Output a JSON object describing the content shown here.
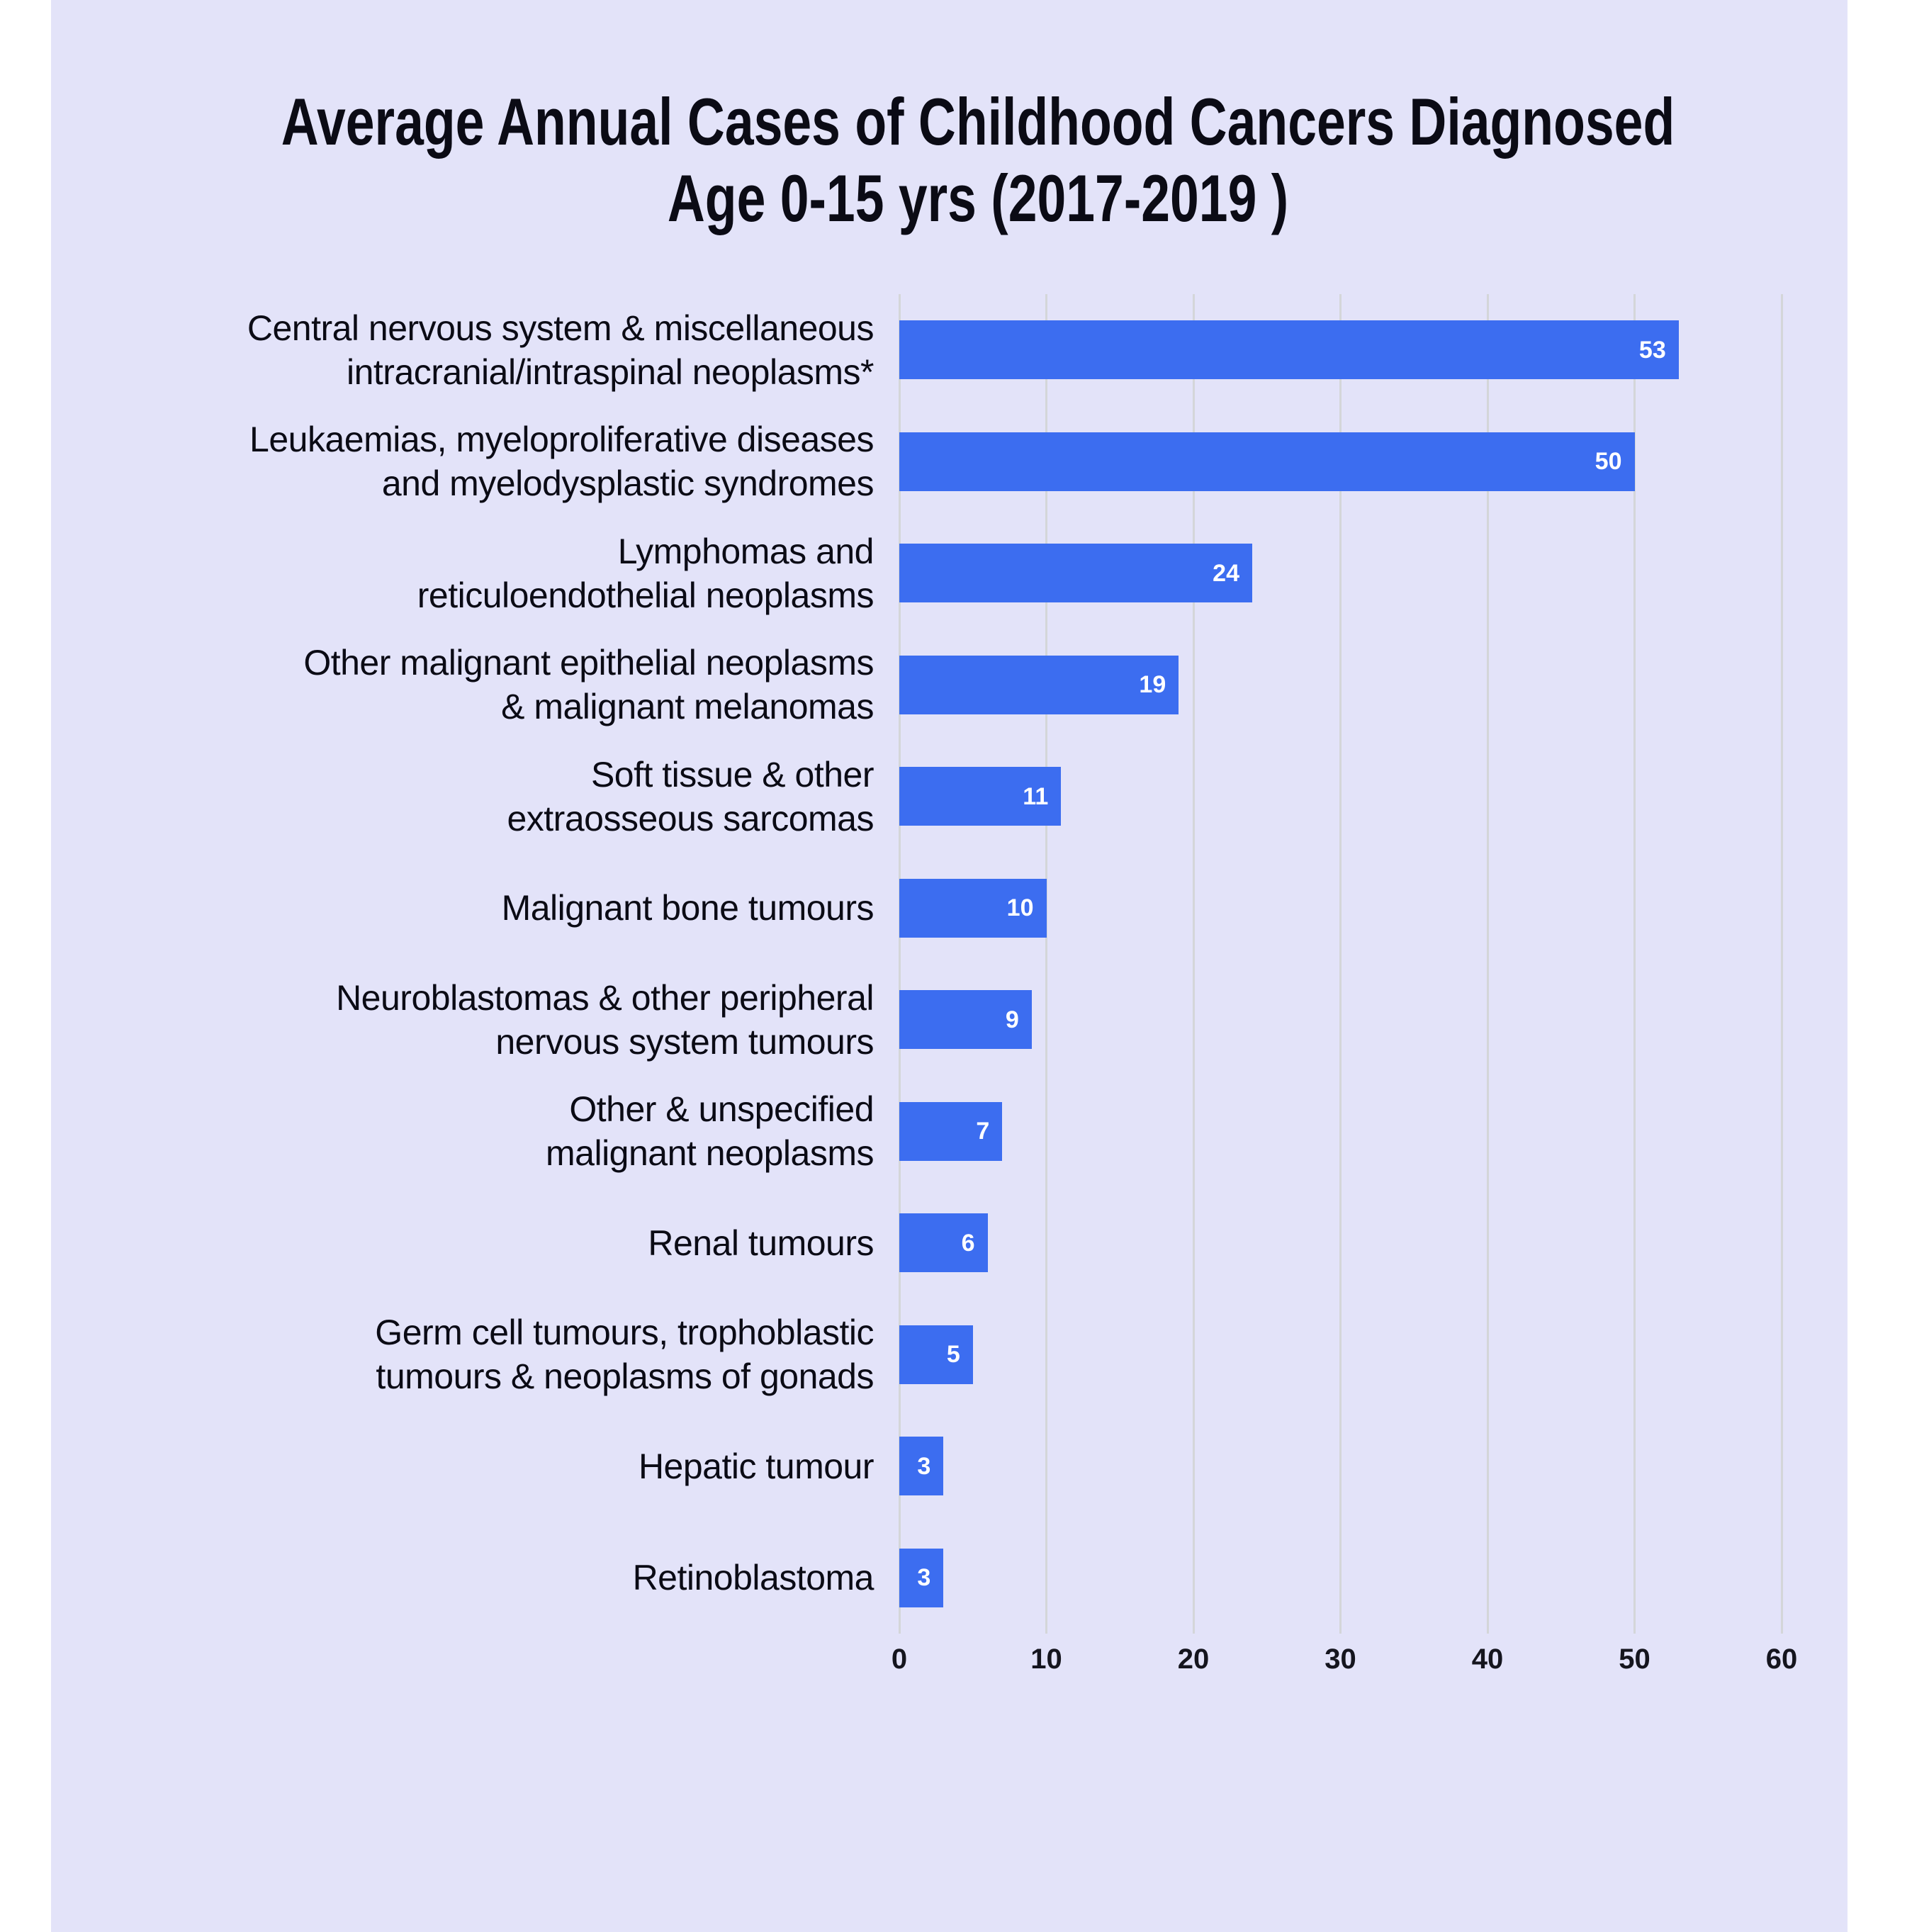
{
  "page": {
    "background_color": "#ffffff",
    "panel_color": "#e3e3f9"
  },
  "chart_data": {
    "type": "bar",
    "orientation": "horizontal",
    "title": "Average Annual Cases of Childhood Cancers Diagnosed Age 0-15 yrs (2017-2019 )",
    "title_lines": [
      "Average Annual Cases of Childhood Cancers Diagnosed",
      "Age 0-15 yrs (2017-2019 )"
    ],
    "categories": [
      "Central nervous system & miscellaneous intracranial/intraspinal neoplasms*",
      "Leukaemias, myeloproliferative diseases and myelodysplastic syndromes",
      "Lymphomas and reticuloendothelial neoplasms",
      "Other malignant epithelial neoplasms & malignant melanomas",
      "Soft tissue & other extraosseous sarcomas",
      "Malignant bone tumours",
      "Neuroblastomas & other peripheral nervous system tumours",
      "Other & unspecified malignant neoplasms",
      "Renal tumours",
      "Germ cell tumours, trophoblastic tumours & neoplasms of gonads",
      "Hepatic tumour",
      "Retinoblastoma"
    ],
    "categories_display": [
      "Central nervous system & miscellaneous\nintracranial/intraspinal neoplasms*",
      "Leukaemias, myeloproliferative diseases\nand myelodysplastic syndromes",
      "Lymphomas and\nreticuloendothelial neoplasms",
      "Other malignant epithelial neoplasms\n& malignant melanomas",
      "Soft tissue & other\nextraosseous sarcomas",
      "Malignant bone tumours",
      "Neuroblastomas & other peripheral\nnervous system tumours",
      "Other & unspecified\nmalignant neoplasms",
      "Renal tumours",
      "Germ cell tumours, trophoblastic\ntumours & neoplasms of gonads",
      "Hepatic tumour",
      "Retinoblastoma"
    ],
    "values": [
      53,
      50,
      24,
      19,
      11,
      10,
      9,
      7,
      6,
      5,
      3,
      3
    ],
    "x_ticks": [
      0,
      10,
      20,
      30,
      40,
      50,
      60
    ],
    "xlim": [
      0,
      60
    ],
    "xlabel": "",
    "ylabel": "",
    "grid": "vertical-only",
    "legend": "none",
    "bar_color": "#3c6df0",
    "value_label_color": "#ffffff",
    "text_color": "#0b0b15",
    "gridline_color": "#d4d6d9"
  }
}
